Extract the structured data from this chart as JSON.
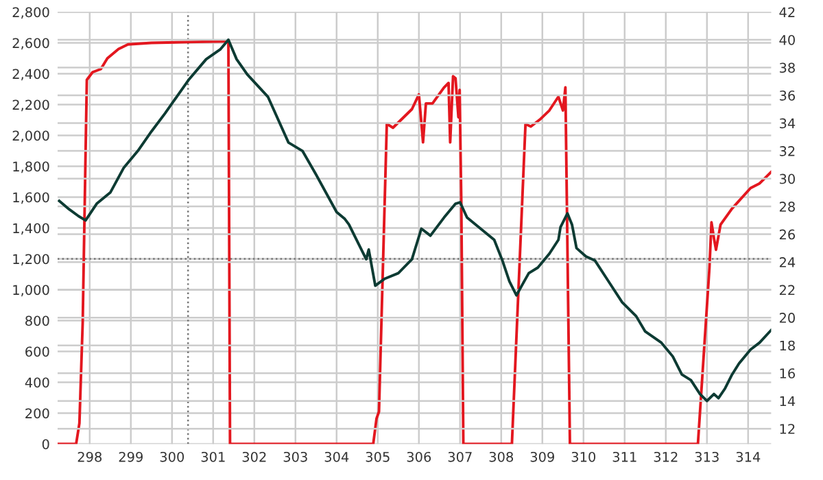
{
  "chart_data": {
    "type": "line",
    "xlim": [
      297.22,
      314.56
    ],
    "xticks": [
      298,
      299,
      300,
      301,
      302,
      303,
      304,
      305,
      306,
      307,
      308,
      309,
      310,
      311,
      312,
      313,
      314
    ],
    "ylim": [
      0,
      2800
    ],
    "yticks": [
      0,
      200,
      400,
      600,
      800,
      {
        "value": 1000,
        "label": "1,000"
      },
      {
        "value": 1200,
        "label": "1,200"
      },
      {
        "value": 1400,
        "label": "1,400"
      },
      {
        "value": 1600,
        "label": "1,600"
      },
      {
        "value": 1800,
        "label": "1,800"
      },
      {
        "value": 2000,
        "label": "2,000"
      },
      {
        "value": 2200,
        "label": "2,200"
      },
      {
        "value": 2400,
        "label": "2,400"
      },
      {
        "value": 2600,
        "label": "2,600"
      },
      {
        "value": 2800,
        "label": "2,800"
      }
    ],
    "y2lim": [
      10.9,
      42
    ],
    "y2ticks": [
      12,
      14,
      16,
      18,
      20,
      22,
      24,
      26,
      28,
      30,
      32,
      34,
      36,
      38,
      40,
      42
    ],
    "grid": true,
    "legend": false,
    "marker": "none",
    "line_style": "solid",
    "ref_lines": [
      {
        "axis": "y",
        "value": 1200,
        "color": "#777777",
        "line_style": "dotted"
      },
      {
        "axis": "x",
        "value": 300.39,
        "color": "#777777",
        "line_style": "dotted"
      }
    ],
    "series": [
      {
        "color": "#e3171f",
        "x": [
          297.23,
          297.67,
          297.75,
          297.83,
          297.93,
          298.07,
          298.27,
          298.43,
          298.7,
          298.93,
          299.5,
          300.37,
          301.33,
          301.37,
          301.41,
          304.89,
          304.97,
          305.03,
          305.22,
          305.37,
          305.83,
          306.0,
          306.1,
          306.17,
          306.33,
          306.61,
          306.72,
          306.76,
          306.83,
          306.89,
          306.96,
          306.99,
          307.03,
          307.08,
          308.26,
          308.59,
          308.72,
          308.94,
          309.17,
          309.39,
          309.5,
          309.56,
          309.67,
          312.78,
          313.06,
          313.11,
          313.17,
          313.22,
          313.33,
          313.61,
          314.06,
          314.28,
          314.56
        ],
        "values": [
          0,
          0,
          135,
          790,
          2360,
          2410,
          2430,
          2500,
          2560,
          2590,
          2600,
          2605,
          2610,
          2615,
          0,
          0,
          165,
          210,
          2075,
          2050,
          2170,
          2266,
          1955,
          2207,
          2207,
          2311,
          2340,
          1955,
          2384,
          2370,
          2118,
          2295,
          1570,
          0,
          0,
          2073,
          2058,
          2103,
          2162,
          2251,
          2162,
          2311,
          0,
          0,
          1141,
          1437,
          1334,
          1259,
          1422,
          1526,
          1659,
          1689,
          1763
        ]
      },
      {
        "color": "#0d3b33",
        "axis": "y2",
        "x": [
          297.26,
          297.5,
          297.73,
          297.9,
          298.17,
          298.5,
          298.83,
          299.17,
          299.5,
          299.83,
          300.4,
          300.83,
          301.17,
          301.37,
          301.57,
          301.83,
          302.33,
          302.83,
          303.17,
          303.5,
          304.0,
          304.2,
          304.3,
          304.72,
          304.78,
          304.94,
          305.17,
          305.5,
          305.83,
          306.06,
          306.28,
          306.61,
          306.89,
          307.0,
          307.17,
          307.5,
          307.83,
          308.03,
          308.2,
          308.37,
          308.5,
          308.67,
          308.89,
          309.17,
          309.39,
          309.44,
          309.61,
          309.72,
          309.83,
          310.06,
          310.28,
          310.61,
          310.94,
          311.28,
          311.5,
          311.89,
          312.17,
          312.39,
          312.61,
          312.83,
          313.0,
          313.17,
          313.28,
          313.44,
          313.61,
          313.78,
          314.06,
          314.28,
          314.56
        ],
        "values": [
          28.4,
          27.8,
          27.3,
          27.0,
          28.2,
          29.0,
          30.8,
          32.0,
          33.4,
          34.7,
          37.1,
          38.6,
          39.3,
          40.0,
          38.6,
          37.5,
          35.9,
          32.6,
          32.0,
          30.3,
          27.6,
          27.1,
          26.7,
          24.2,
          24.9,
          22.3,
          22.8,
          23.2,
          24.2,
          26.4,
          25.9,
          27.2,
          28.2,
          28.3,
          27.2,
          26.4,
          25.6,
          24.1,
          22.6,
          21.6,
          22.3,
          23.2,
          23.6,
          24.6,
          25.6,
          26.5,
          27.5,
          26.7,
          25.0,
          24.4,
          24.1,
          22.6,
          21.1,
          20.1,
          19.0,
          18.2,
          17.2,
          15.9,
          15.5,
          14.5,
          14.0,
          14.5,
          14.2,
          14.9,
          15.9,
          16.7,
          17.7,
          18.2,
          19.1
        ]
      }
    ]
  }
}
